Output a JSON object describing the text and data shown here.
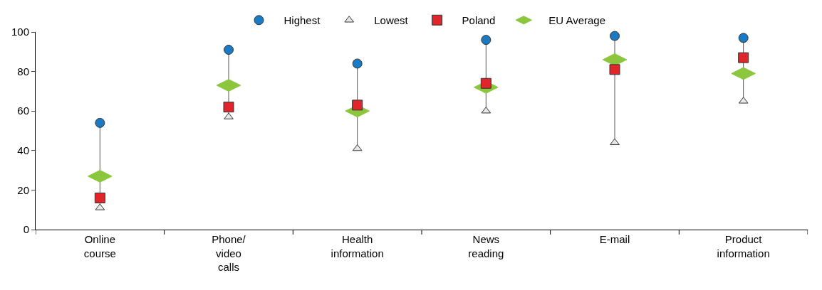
{
  "chart_data": {
    "type": "scatter",
    "categories": [
      "Online\ncourse",
      "Phone/\nvideo\ncalls",
      "Health\ninformation",
      "News\nreading",
      "E-mail",
      "Product\ninformation"
    ],
    "series": [
      {
        "name": "Highest",
        "color": "#1a7ac4",
        "marker": "circle",
        "values": [
          54,
          91,
          84,
          96,
          98,
          97
        ]
      },
      {
        "name": "Lowest",
        "color": "#e8e8e8",
        "marker": "triangle",
        "values": [
          11,
          57,
          41,
          60,
          44,
          65
        ]
      },
      {
        "name": "Poland",
        "color": "#e0262b",
        "marker": "square",
        "values": [
          16,
          62,
          63,
          74,
          81,
          87
        ]
      },
      {
        "name": "EU Average",
        "color": "#8cc63f",
        "marker": "diamond",
        "values": [
          27,
          73,
          60,
          72,
          86,
          79
        ]
      }
    ],
    "ylim": [
      0,
      100
    ],
    "yticks": [
      0,
      20,
      40,
      60,
      80,
      100
    ],
    "grid": false,
    "legend": "top"
  }
}
